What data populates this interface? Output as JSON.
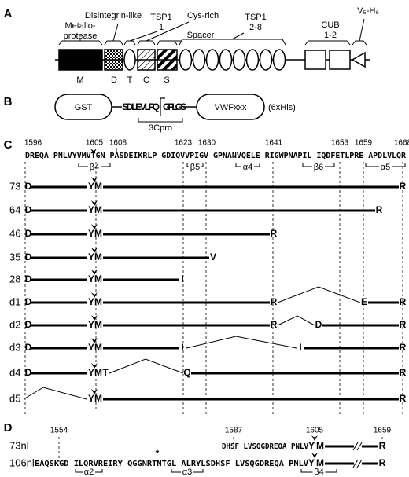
{
  "panel_a": {
    "label": "A",
    "domains_above": [
      [
        "Metallo-",
        "protease"
      ],
      [
        "Disintegrin-like"
      ],
      [
        "TSP1",
        "1"
      ],
      [
        "Cys-rich"
      ],
      [
        "Spacer"
      ],
      [
        "TSP1",
        "2-8"
      ],
      [
        "CUB",
        "1-2"
      ],
      [
        "V₅-H₆"
      ]
    ],
    "domains_below": [
      "M",
      "D",
      "T",
      "C",
      "S"
    ]
  },
  "panel_b": {
    "label": "B",
    "tag": "GST",
    "site_left": "SDLEVLFQ",
    "site_right": "GPLGS",
    "protease": "3Cpro",
    "fragment": "VWFxxx",
    "his_tag": "(6xHis)"
  },
  "panel_c": {
    "label": "C",
    "positions": [
      1596,
      1605,
      1608,
      1623,
      1630,
      1641,
      1653,
      1659,
      1668
    ],
    "sequence": "DREQA PNLVYVMVTGN PASDEIKRLP GDIQVVPIGV GPNANVQELE RIGWPNAPIL IQDFETLPRE APDLVLQR",
    "structures": [
      "β4",
      "β5",
      "α4",
      "β6",
      "α5"
    ],
    "rows": [
      {
        "label": "73",
        "residues": [
          "D",
          "Y",
          "M",
          "R"
        ]
      },
      {
        "label": "64",
        "residues": [
          "D",
          "Y",
          "M",
          "R"
        ]
      },
      {
        "label": "46",
        "residues": [
          "D",
          "Y",
          "M",
          "R"
        ]
      },
      {
        "label": "35",
        "residues": [
          "D",
          "Y",
          "M",
          "V"
        ]
      },
      {
        "label": "28",
        "residues": [
          "D",
          "Y",
          "M",
          "I"
        ]
      },
      {
        "label": "d1",
        "residues": [
          "D",
          "Y",
          "M",
          "R",
          "E",
          "R"
        ]
      },
      {
        "label": "d2",
        "residues": [
          "D",
          "Y",
          "M",
          "R",
          "D",
          "R"
        ]
      },
      {
        "label": "d3",
        "residues": [
          "D",
          "Y",
          "M",
          "I",
          "I",
          "R"
        ]
      },
      {
        "label": "d4",
        "residues": [
          "D",
          "Y",
          "M",
          "T",
          "Q",
          "R"
        ]
      },
      {
        "label": "d5",
        "residues": [
          "Y",
          "M",
          "R"
        ]
      }
    ]
  },
  "panel_d": {
    "label": "D",
    "positions": [
      1554,
      1587,
      1605,
      1659
    ],
    "annotation": "*",
    "structures": [
      "α2",
      "α3",
      "β4"
    ],
    "rows": [
      {
        "label": "73nl",
        "sequence": "DHSF LVSQGDREQA PNLV",
        "residues": [
          "Y",
          "M",
          "R"
        ]
      },
      {
        "label": "106nl",
        "sequence": "EAQSKGD ILQRVREIRY QGGNRTNTGL ALRYLSDHSF LVSQGDREQA PNLV",
        "residues": [
          "Y",
          "M",
          "R"
        ]
      }
    ]
  }
}
